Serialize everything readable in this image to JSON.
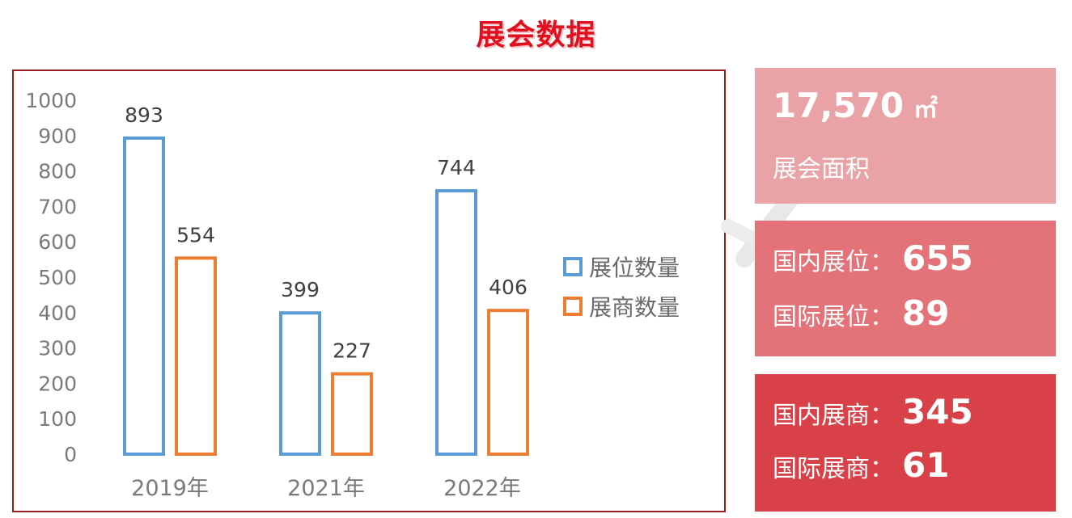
{
  "title": "展会数据",
  "colors": {
    "title": "#e0101e",
    "frame": "#9b1c1c",
    "series1": "#5b9bd5",
    "series2": "#ed7d31",
    "card1": "#e9a3a6",
    "card2": "#e37379",
    "card3": "#d84148"
  },
  "chart_data": {
    "type": "bar",
    "categories": [
      "2019年",
      "2021年",
      "2022年"
    ],
    "series": [
      {
        "name": "展位数量",
        "values": [
          893,
          399,
          744
        ],
        "color": "#5b9bd5"
      },
      {
        "name": "展商数量",
        "values": [
          554,
          227,
          406
        ],
        "color": "#ed7d31"
      }
    ],
    "ylim": [
      0,
      1000
    ],
    "yticks": [
      0,
      100,
      200,
      300,
      400,
      500,
      600,
      700,
      800,
      900,
      1000
    ],
    "grid": false,
    "legend_position": "right",
    "bar_style": "outline",
    "data_labels": true
  },
  "stats": {
    "area": {
      "value": "17,570",
      "unit": "㎡",
      "label": "展会面积"
    },
    "booths": {
      "domestic_label": "国内展位：",
      "domestic_value": "655",
      "international_label": "国际展位：",
      "international_value": "89"
    },
    "exhibitors": {
      "domestic_label": "国内展商：",
      "domestic_value": "345",
      "international_label": "国际展商：",
      "international_value": "61"
    }
  }
}
